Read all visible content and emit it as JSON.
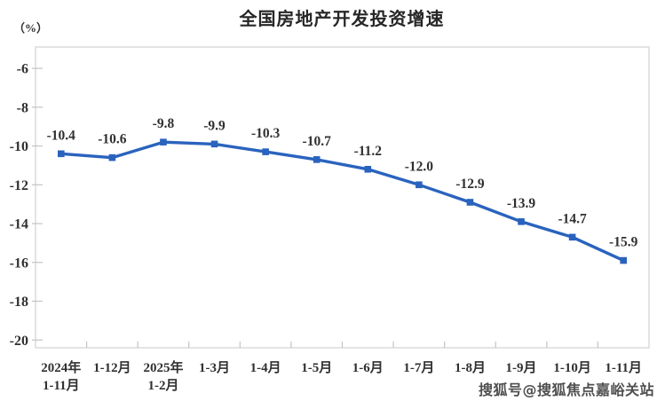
{
  "title": "全国房地产开发投资增速",
  "y_axis_unit": "（%）",
  "watermark": "搜狐号@搜狐焦点嘉峪关站",
  "colors": {
    "line": "#2a63be",
    "marker": "#2a63be",
    "plot_border": "#d9d9d9",
    "tick": "#c3c3c3",
    "axis_text": "#303030",
    "title_text": "#262626",
    "watermark_text": "#4f4f4f",
    "background": "#ffffff"
  },
  "chart_data": {
    "type": "line",
    "title": "全国房地产开发投资增速",
    "ylabel": "（%）",
    "categories": [
      [
        "2024年",
        "1-11月"
      ],
      [
        "1-12月"
      ],
      [
        "2025年",
        "1-2月"
      ],
      [
        "1-3月"
      ],
      [
        "1-4月"
      ],
      [
        "1-5月"
      ],
      [
        "1-6月"
      ],
      [
        "1-7月"
      ],
      [
        "1-8月"
      ],
      [
        "1-9月"
      ],
      [
        "1-10月"
      ],
      [
        "1-11月"
      ]
    ],
    "series": [
      {
        "name": "全国房地产开发投资增速",
        "values": [
          -10.4,
          -10.6,
          -9.8,
          -9.9,
          -10.3,
          -10.7,
          -11.2,
          -12.0,
          -12.9,
          -13.9,
          -14.7,
          -15.9
        ]
      }
    ],
    "data_labels": [
      "-10.4",
      "-10.6",
      "-9.8",
      "-9.9",
      "-10.3",
      "-10.7",
      "-11.2",
      "-12.0",
      "-12.9",
      "-13.9",
      "-14.7",
      "-15.9"
    ],
    "yticks": [
      -6,
      -8,
      -10,
      -12,
      -14,
      -16,
      -18,
      -20
    ],
    "ylim": [
      -20.4,
      -4.9
    ],
    "grid": false,
    "legend": "none",
    "marker": "square"
  }
}
